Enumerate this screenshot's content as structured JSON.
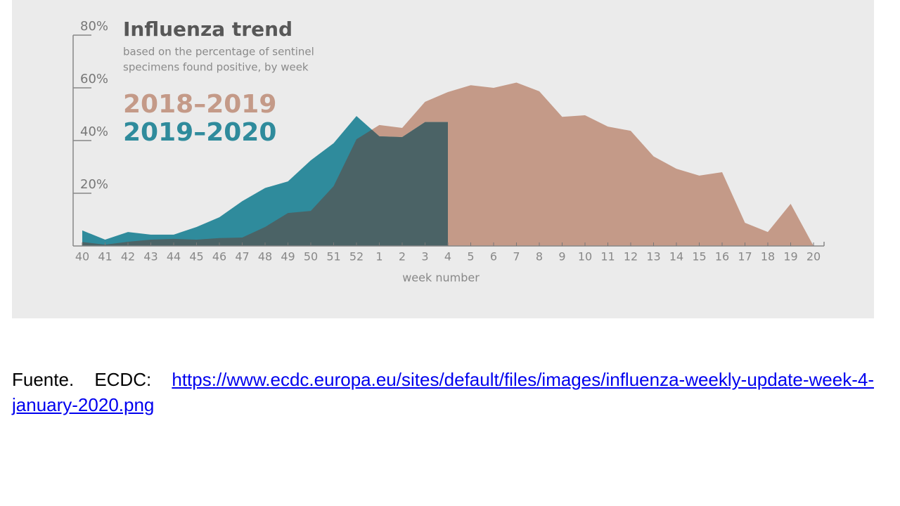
{
  "chart_data": {
    "type": "area",
    "title": "Influenza trend",
    "subtitle": [
      "based on the percentage of sentinel",
      "specimens found positive, by week"
    ],
    "x_label": "week number",
    "categories": [
      "40",
      "41",
      "42",
      "43",
      "44",
      "45",
      "46",
      "47",
      "48",
      "49",
      "50",
      "51",
      "52",
      "1",
      "2",
      "3",
      "4",
      "5",
      "6",
      "7",
      "8",
      "9",
      "10",
      "11",
      "12",
      "13",
      "14",
      "15",
      "16",
      "17",
      "18",
      "19",
      "20"
    ],
    "series": [
      {
        "name": "2018–2019",
        "color": "#c49a88",
        "values": [
          1.5,
          0.5,
          1.6,
          2.4,
          2.7,
          2.4,
          3,
          3.2,
          7.2,
          12.5,
          13.3,
          22.7,
          40.5,
          45.9,
          44.8,
          54.7,
          58.4,
          61,
          60,
          62,
          58.7,
          49,
          49.6,
          45.3,
          43.7,
          34,
          29.3,
          26.7,
          28,
          8.8,
          5.3,
          16,
          0
        ]
      },
      {
        "name": "2019–2020",
        "color": "#2f8b9c",
        "values": [
          5.9,
          2.4,
          5.3,
          4.3,
          4.3,
          7.2,
          10.9,
          17,
          22,
          24.5,
          32.5,
          39,
          49.3,
          41.6,
          41.3,
          47,
          47,
          null,
          null,
          null,
          null,
          null,
          null,
          null,
          null,
          null,
          null,
          null,
          null,
          null,
          null,
          null,
          null
        ]
      }
    ],
    "overlap_color": "#4b6366",
    "ylim": [
      0,
      80
    ],
    "yticks": [
      {
        "value": 20,
        "label": "20%"
      },
      {
        "value": 40,
        "label": "40%"
      },
      {
        "value": 60,
        "label": "60%"
      },
      {
        "value": 80,
        "label": "80%"
      }
    ]
  },
  "caption": {
    "source_label": "Fuente.",
    "source_org": "ECDC:",
    "url": "https://www.ecdc.europa.eu/sites/default/files/images/influenza-weekly-update-week-4-january-2020.png"
  }
}
